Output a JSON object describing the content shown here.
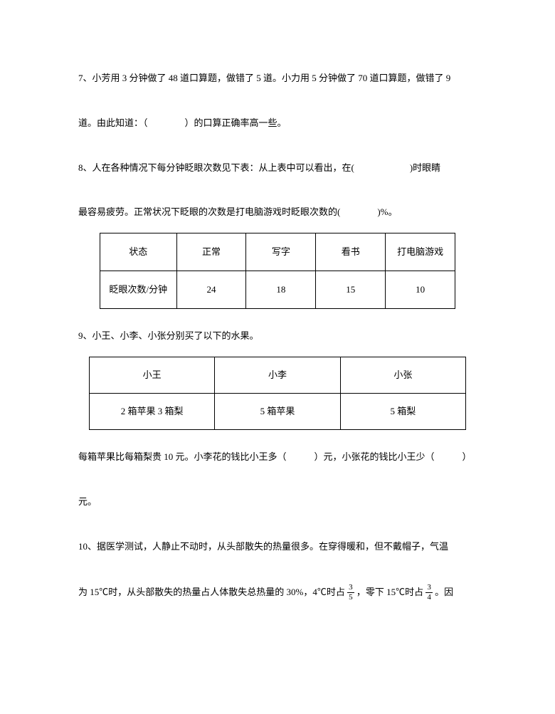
{
  "q7": {
    "text_a": "7、小芳用 3 分钟做了 48 道口算题，做错了 5 道。小力用 5 分钟做了 70 道口算题，做错了 9",
    "text_b": "道。由此知道：（　　　　）的口算正确率高一些。"
  },
  "q8": {
    "text_a": "8、人在各种情况下每分钟眨眼次数见下表：从上表中可以看出，在(　　　　　　)时眼睛",
    "text_b": "最容易疲劳。正常状况下眨眼的次数是打电脑游戏时眨眼次数的(　　　　)%。",
    "table": {
      "header_row": [
        "状态",
        "正常",
        "写字",
        "看书",
        "打电脑游戏"
      ],
      "data_row_label": "眨眼次数/分钟",
      "data_row": [
        "24",
        "18",
        "15",
        "10"
      ]
    }
  },
  "q9": {
    "intro": "9、小王、小李、小张分别买了以下的水果。",
    "table": {
      "names": [
        "小王",
        "小李",
        "小张"
      ],
      "items": [
        "2 箱苹果 3 箱梨",
        "5 箱苹果",
        "5 箱梨"
      ]
    },
    "tail_a": "每箱苹果比每箱梨贵 10 元。小李花的钱比小王多（　　　）元，小张花的钱比小王少（　　　）",
    "tail_b": "元。"
  },
  "q10": {
    "text_a": "10、据医学测试，人静止不动时，从头部散失的热量很多。在穿得暖和，但不戴帽子，气温",
    "text_b_pre": "为 15℃时，从头部散失的热量占人体散失总热量的 30%，4℃时占 ",
    "frac1_n": "3",
    "frac1_d": "5",
    "text_b_mid": " ，零下 15℃时占 ",
    "frac2_n": "3",
    "frac2_d": "4",
    "text_b_post": " 。因"
  }
}
